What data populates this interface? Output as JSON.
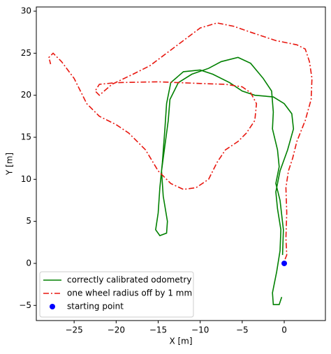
{
  "chart_data": {
    "type": "line",
    "xlabel": "X [m]",
    "ylabel": "Y [m]",
    "xlim": [
      -29.5,
      4.9
    ],
    "ylim": [
      -6.8,
      30.5
    ],
    "xticks": [
      {
        "value": -25,
        "label": "−25"
      },
      {
        "value": -20,
        "label": "−20"
      },
      {
        "value": -15,
        "label": "−15"
      },
      {
        "value": -10,
        "label": "−10"
      },
      {
        "value": -5,
        "label": "−5"
      },
      0
    ],
    "yticks": [
      {
        "value": -5,
        "label": "−5"
      },
      0,
      5,
      10,
      15,
      20,
      25,
      30
    ],
    "legend": "lower left",
    "series": [
      {
        "name": "correctly calibrated odometry",
        "color": "#008000",
        "style": "solid",
        "x": [
          -0.3,
          -0.6,
          -1.3,
          -1.4,
          -0.9,
          -0.5,
          -0.4,
          -0.8,
          -1.0,
          -0.5,
          0.4,
          1.1,
          0.9,
          0,
          -1.3,
          -3.5,
          -5,
          -6.5,
          -8.5,
          -10,
          -12,
          -13.5,
          -14,
          -14.2,
          -14.5,
          -14.8,
          -15,
          -15.3,
          -14.8,
          -14,
          -13.9,
          -14.4,
          -14.6,
          -14.2,
          -13.8,
          -13.6,
          -12.6,
          -11,
          -9,
          -7.5,
          -5.5,
          -4,
          -2.5,
          -1.5,
          -1.3,
          -1.4,
          -0.8,
          -0.6,
          -1,
          -0.5,
          -0.1,
          -0.2
        ],
        "values": [
          -4,
          -4.9,
          -4.9,
          -3.5,
          -1,
          1.5,
          4,
          6.5,
          8.5,
          11,
          13.5,
          16,
          17.8,
          19,
          19.8,
          20,
          20.5,
          21.5,
          22.5,
          23,
          22.8,
          21.5,
          19,
          16,
          12,
          9,
          6,
          4,
          3.3,
          3.6,
          5,
          8,
          11,
          14,
          17,
          19.5,
          21.5,
          22.5,
          23.2,
          24,
          24.5,
          23.8,
          22,
          20.5,
          18,
          16,
          13.5,
          11.5,
          9.5,
          7.5,
          4,
          1
        ]
      },
      {
        "name": "one wheel radius off by 1 mm",
        "color": "#e8170f",
        "style": "dashdot",
        "x": [
          0.1,
          0.3,
          0.2,
          0.3,
          0.2,
          0.5,
          1,
          1.5,
          2.5,
          3.2,
          3.3,
          3,
          2.5,
          1.5,
          -1,
          -4,
          -6,
          -8,
          -10,
          -12,
          -14,
          -16,
          -18,
          -20.5,
          -22,
          -22.5,
          -22,
          -20,
          -15,
          -10,
          -7,
          -5,
          -4,
          -3.3,
          -3.5,
          -4.5,
          -5.5,
          -7,
          -8,
          -9,
          -10.5,
          -12,
          -13.5,
          -15,
          -16.5,
          -18.5,
          -20,
          -22,
          -23.5,
          -25,
          -26.5,
          -27.5,
          -28,
          -27.8
        ],
        "values": [
          0.5,
          1,
          3,
          6,
          9,
          11,
          12.5,
          14.5,
          17,
          19.5,
          22,
          24,
          25.5,
          26,
          26.5,
          27.5,
          28.2,
          28.6,
          28,
          26.5,
          25,
          23.5,
          22.5,
          21.3,
          20,
          20.5,
          21.3,
          21.5,
          21.6,
          21.4,
          21.3,
          21,
          20.3,
          19,
          17,
          15.5,
          14.5,
          13.5,
          12,
          10,
          9,
          8.8,
          9.5,
          11,
          13.5,
          15.5,
          16.5,
          17.5,
          19,
          22,
          24,
          25,
          24.5,
          23.7
        ]
      },
      {
        "name": "starting point",
        "color": "#0000ff",
        "style": "marker",
        "x": [
          0
        ],
        "values": [
          0
        ]
      }
    ]
  }
}
